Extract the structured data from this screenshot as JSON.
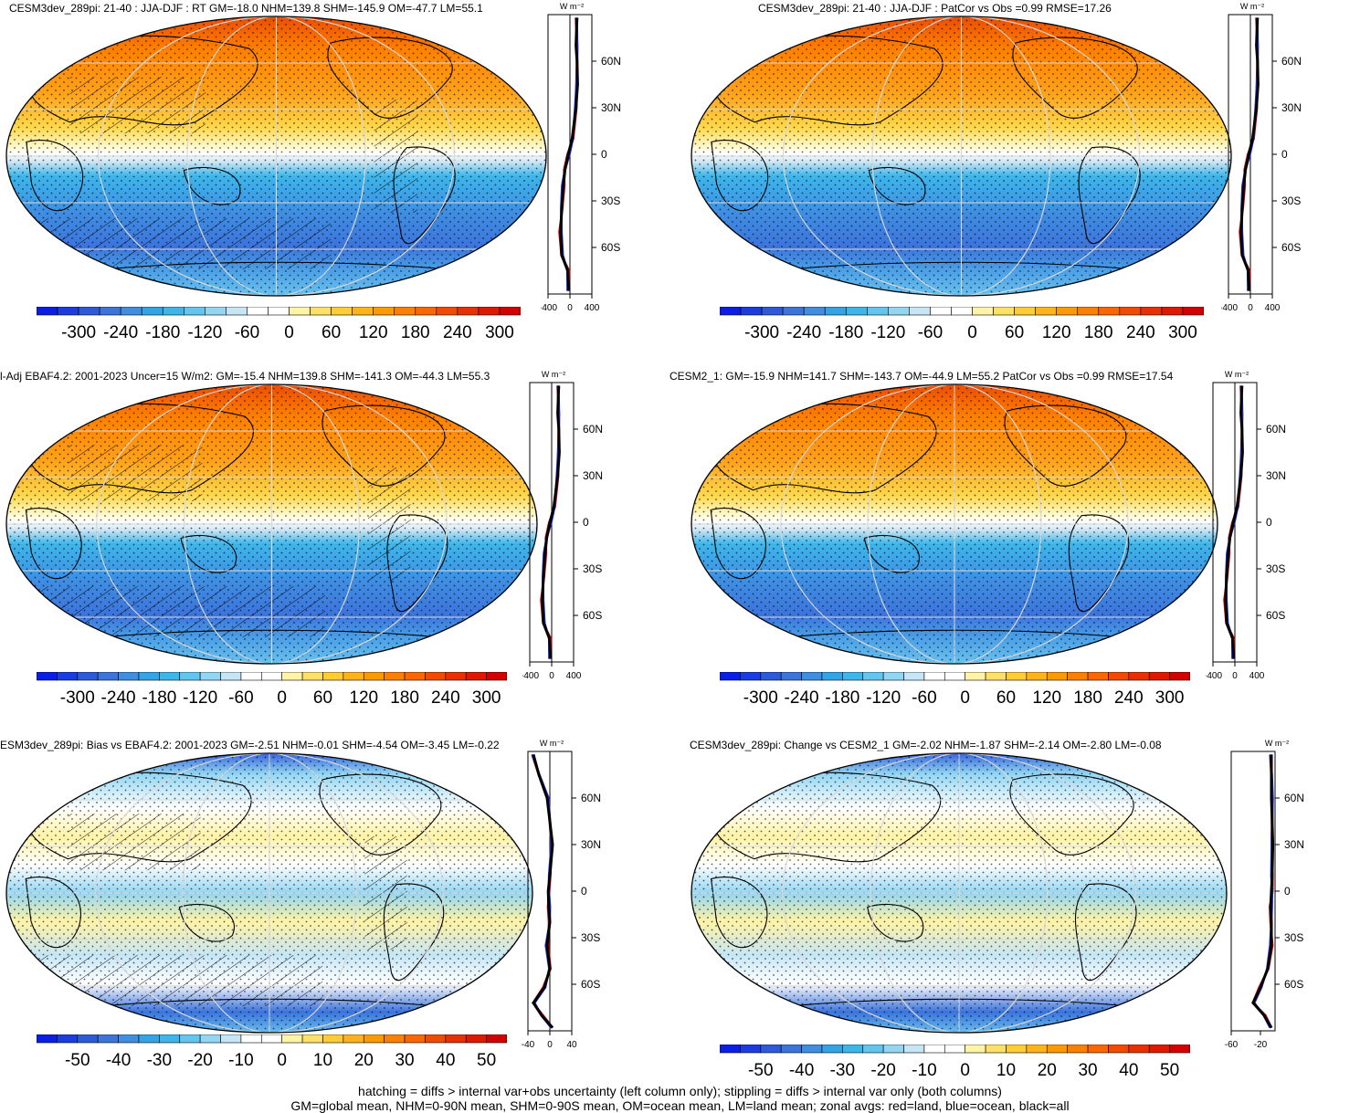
{
  "panels": [
    {
      "id": "p1",
      "title": "CESM3dev_289pi: 21-40 : JJA-DJF : RT GM=-18.0 NHM=139.8 SHM=-145.9 OM=-47.7 LM=55.1",
      "mode": "abs",
      "hatch": true,
      "stipple": true,
      "colorbar": "abs",
      "zonal_xlim": [
        -400,
        400
      ],
      "zonal_xticks": [
        "-400",
        "0",
        "400"
      ]
    },
    {
      "id": "p2",
      "title": "CESM3dev_289pi: 21-40 : JJA-DJF : PatCor vs Obs =0.99 RMSE=17.26",
      "mode": "abs",
      "hatch": false,
      "stipple": true,
      "colorbar": "abs",
      "zonal_xlim": [
        -400,
        400
      ],
      "zonal_xticks": [
        "-400",
        "0",
        "400"
      ]
    },
    {
      "id": "p3",
      "title": "l-Adj EBAF4.2: 2001-2023 Uncer=15 W/m2: GM=-15.4 NHM=139.8 SHM=-141.3 OM=-44.3 LM=55.3",
      "mode": "abs",
      "hatch": true,
      "stipple": true,
      "colorbar": "abs",
      "zonal_xlim": [
        -400,
        400
      ],
      "zonal_xticks": [
        "-400",
        "0",
        "400"
      ]
    },
    {
      "id": "p4",
      "title": "CESM2_1: GM=-15.9 NHM=141.7 SHM=-143.7 OM=-44.9 LM=55.2 PatCor vs Obs =0.99 RMSE=17.54",
      "mode": "abs",
      "hatch": false,
      "stipple": true,
      "colorbar": "abs",
      "zonal_xlim": [
        -400,
        400
      ],
      "zonal_xticks": [
        "-400",
        "0",
        "400"
      ]
    },
    {
      "id": "p5",
      "title": "ESM3dev_289pi: Bias vs EBAF4.2: 2001-2023 GM=-2.51 NHM=-0.01 SHM=-4.54 OM=-3.45 LM=-0.22",
      "mode": "diff",
      "hatch": true,
      "stipple": true,
      "colorbar": "diff",
      "zonal_xlim": [
        -40,
        40
      ],
      "zonal_xticks": [
        "-40",
        "0",
        "40"
      ]
    },
    {
      "id": "p6",
      "title": "CESM3dev_289pi: Change vs CESM2_1 GM=-2.02 NHM=-1.87 SHM=-2.14 OM=-2.80 LM=-0.08",
      "mode": "diff",
      "hatch": false,
      "stipple": true,
      "colorbar": "diff",
      "zonal_xlim": [
        -60,
        0
      ],
      "zonal_xticks": [
        "-60",
        "-20"
      ]
    }
  ],
  "units_label": "W m⁻²",
  "lat_labels": [
    "60N",
    "30N",
    "0",
    "30S",
    "60S"
  ],
  "colorbars": {
    "abs": {
      "ticks": [
        "-300",
        "-240",
        "-180",
        "-120",
        "-60",
        "0",
        "60",
        "120",
        "180",
        "240",
        "300"
      ],
      "colors": [
        "#0a1ee6",
        "#1a3ce0",
        "#2d5ada",
        "#3c74dc",
        "#3f8ee2",
        "#33a4e6",
        "#3db6ea",
        "#63c6ef",
        "#93d6f3",
        "#c6e6f6",
        "#ffffff",
        "#ffffff",
        "#fff3a6",
        "#ffe066",
        "#ffcc33",
        "#ffb31a",
        "#ff9900",
        "#ff7f00",
        "#ff6600",
        "#f24a00",
        "#e83000",
        "#e01800",
        "#d40000"
      ]
    },
    "diff": {
      "ticks": [
        "-50",
        "-40",
        "-30",
        "-20",
        "-10",
        "0",
        "10",
        "20",
        "30",
        "40",
        "50"
      ],
      "colors": [
        "#0a1ee6",
        "#1a3ce0",
        "#2d5ada",
        "#3c74dc",
        "#3f8ee2",
        "#33a4e6",
        "#3db6ea",
        "#63c6ef",
        "#93d6f3",
        "#c6e6f6",
        "#ffffff",
        "#ffffff",
        "#fff3a6",
        "#ffe066",
        "#ffcc33",
        "#ffb31a",
        "#ff9900",
        "#ff7f00",
        "#ff6600",
        "#f24a00",
        "#e83000",
        "#e01800",
        "#d40000"
      ]
    }
  },
  "footer": {
    "line1": "hatching = diffs > internal var+obs uncertainty (left column only); stippling = diffs > internal var only (both columns)",
    "line2": "GM=global mean, NHM=0-90N mean, SHM=0-90S mean, OM=ocean mean, LM=land mean; zonal avgs: red=land, blue=ocean, black=all"
  },
  "chart_data": [
    {
      "type": "line",
      "title": "CESM3dev_289pi: 21-40 : JJA-DJF : RT GM=-18.0 NHM=139.8 SHM=-145.9 OM=-47.7 LM=55.1",
      "xlim": [
        -400,
        400
      ],
      "ylim": [
        -90,
        90
      ],
      "series": [
        {
          "name": "all",
          "x": [
            -20,
            -40,
            -150,
            -170,
            -150,
            -120,
            -90,
            -30,
            40,
            110,
            140,
            130,
            110,
            120,
            130
          ],
          "y": [
            -88,
            -75,
            -65,
            -50,
            -35,
            -20,
            -10,
            0,
            10,
            30,
            45,
            60,
            70,
            80,
            88
          ]
        }
      ]
    },
    {
      "type": "line",
      "title": "CESM3dev_289pi: 21-40 : JJA-DJF : PatCor vs Obs =0.99 RMSE=17.26",
      "xlim": [
        -400,
        400
      ],
      "ylim": [
        -90,
        90
      ],
      "series": [
        {
          "name": "all",
          "x": [
            -20,
            -40,
            -150,
            -170,
            -150,
            -120,
            -90,
            -30,
            40,
            110,
            140,
            130,
            110,
            120,
            130
          ],
          "y": [
            -88,
            -75,
            -65,
            -50,
            -35,
            -20,
            -10,
            0,
            10,
            30,
            45,
            60,
            70,
            80,
            88
          ]
        }
      ]
    },
    {
      "type": "line",
      "title": "l-Adj EBAF4.2: 2001-2023 Uncer=15 W/m2: GM=-15.4 NHM=139.8 SHM=-141.3 OM=-44.3 LM=55.3",
      "xlim": [
        -400,
        400
      ],
      "ylim": [
        -90,
        90
      ],
      "series": [
        {
          "name": "all",
          "x": [
            -20,
            -40,
            -150,
            -170,
            -150,
            -120,
            -90,
            -30,
            40,
            110,
            140,
            130,
            110,
            120,
            130
          ],
          "y": [
            -88,
            -75,
            -65,
            -50,
            -35,
            -20,
            -10,
            0,
            10,
            30,
            45,
            60,
            70,
            80,
            88
          ]
        }
      ]
    },
    {
      "type": "line",
      "title": "CESM2_1: GM=-15.9 NHM=141.7 SHM=-143.7 OM=-44.9 LM=55.2 PatCor vs Obs =0.99 RMSE=17.54",
      "xlim": [
        -400,
        400
      ],
      "ylim": [
        -90,
        90
      ],
      "series": [
        {
          "name": "all",
          "x": [
            -20,
            -40,
            -150,
            -170,
            -150,
            -120,
            -90,
            -30,
            40,
            110,
            140,
            130,
            110,
            120,
            130
          ],
          "y": [
            -88,
            -75,
            -65,
            -50,
            -35,
            -20,
            -10,
            0,
            10,
            30,
            45,
            60,
            70,
            80,
            88
          ]
        }
      ]
    },
    {
      "type": "line",
      "title": "ESM3dev_289pi: Bias vs EBAF4.2: 2001-2023 GM=-2.51 NHM=-0.01 SHM=-4.54 OM=-3.45 LM=-0.22",
      "xlim": [
        -40,
        40
      ],
      "ylim": [
        -90,
        90
      ],
      "series": [
        {
          "name": "all",
          "x": [
            5,
            -15,
            -30,
            -10,
            0,
            -5,
            0,
            -2,
            -3,
            0,
            5,
            0,
            -5,
            -20,
            -30
          ],
          "y": [
            -88,
            -80,
            -72,
            -62,
            -50,
            -35,
            -20,
            -10,
            0,
            10,
            30,
            45,
            60,
            75,
            88
          ]
        }
      ]
    },
    {
      "type": "line",
      "title": "CESM3dev_289pi: Change vs CESM2_1 GM=-2.02 NHM=-1.87 SHM=-2.14 OM=-2.80 LM=-0.08",
      "xlim": [
        -60,
        0
      ],
      "ylim": [
        -90,
        90
      ],
      "series": [
        {
          "name": "all",
          "x": [
            -5,
            -15,
            -30,
            -20,
            -10,
            -5,
            -5,
            -6,
            -5,
            -4,
            -3,
            -4,
            -5,
            -5,
            -5
          ],
          "y": [
            -88,
            -80,
            -72,
            -62,
            -50,
            -35,
            -20,
            -10,
            0,
            10,
            30,
            45,
            60,
            75,
            88
          ]
        }
      ]
    }
  ]
}
